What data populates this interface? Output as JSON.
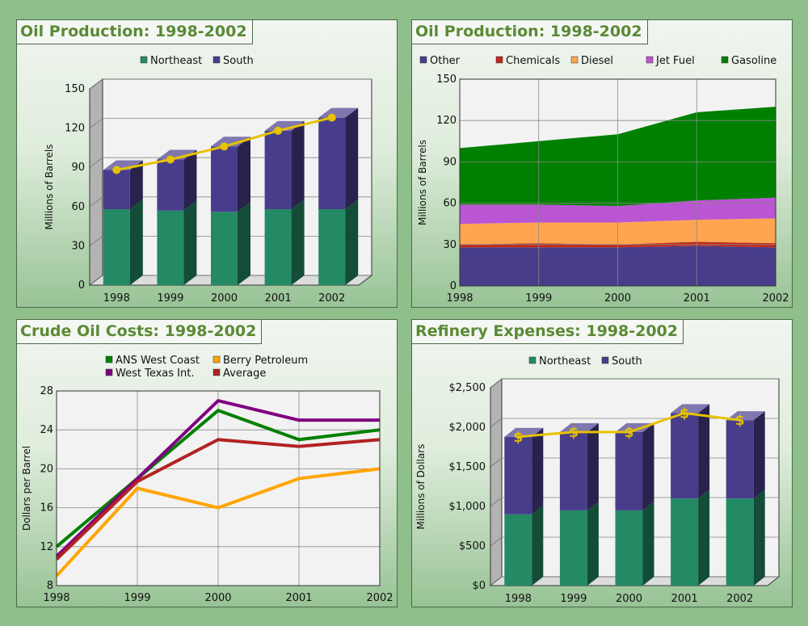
{
  "colors": {
    "northeast": "#238a64",
    "south": "#483d8b",
    "total_line": "#e6c200",
    "other": "#483d8b",
    "chemicals": "#c0281c",
    "diesel": "#ffa54f",
    "jet_fuel": "#ba55d3",
    "gasoline": "#008000",
    "ans": "#008000",
    "berry": "#ffa500",
    "wti": "#800080",
    "average": "#b22222"
  },
  "charts": [
    {
      "title": "Oil Production: 1998-2002",
      "chart_data": {
        "type": "bar",
        "stacked": true,
        "three_d": true,
        "categories": [
          "1998",
          "1999",
          "2000",
          "2001",
          "2002"
        ],
        "series": [
          {
            "name": "Northeast",
            "values": [
              58,
              57,
              56,
              58,
              58
            ]
          },
          {
            "name": "South",
            "values": [
              30,
              39,
              50,
              60,
              70
            ]
          }
        ],
        "line_overlay": {
          "values": [
            88,
            96,
            106,
            118,
            128
          ]
        },
        "ylabel": "Millions of Barrels",
        "ylim": [
          0,
          150
        ],
        "yticks": [
          "0",
          "30",
          "60",
          "90",
          "120",
          "150"
        ],
        "ytick_values": [
          0,
          30,
          60,
          90,
          120,
          150
        ],
        "legend": "top",
        "grid": true
      }
    },
    {
      "title": "Oil Production: 1998-2002",
      "chart_data": {
        "type": "area",
        "stacked": true,
        "x": [
          "1998",
          "1999",
          "2000",
          "2001",
          "2002"
        ],
        "series": [
          {
            "name": "Other",
            "values": [
              28,
              28,
              28,
              29,
              28
            ]
          },
          {
            "name": "Chemicals",
            "values": [
              2,
              3,
              2,
              3,
              3
            ]
          },
          {
            "name": "Diesel",
            "values": [
              15,
              15,
              16,
              16,
              18
            ]
          },
          {
            "name": "Jet Fuel",
            "values": [
              14,
              13,
              12,
              14,
              15
            ]
          },
          {
            "name": "Gasoline",
            "values": [
              41,
              46,
              52,
              64,
              66
            ]
          }
        ],
        "ylabel": "Millions of Barrels",
        "ylim": [
          0,
          150
        ],
        "yticks": [
          "0",
          "30",
          "60",
          "90",
          "120",
          "150"
        ],
        "ytick_values": [
          0,
          30,
          60,
          90,
          120,
          150
        ],
        "legend": "top",
        "grid": true
      }
    },
    {
      "title": "Crude Oil Costs: 1998-2002",
      "chart_data": {
        "type": "line",
        "x": [
          "1998",
          "1999",
          "2000",
          "2001",
          "2002"
        ],
        "series": [
          {
            "name": "ANS West Coast",
            "values": [
              12,
              19,
              26,
              23,
              24
            ]
          },
          {
            "name": "Berry Petroleum",
            "values": [
              9,
              18,
              16,
              19,
              20
            ]
          },
          {
            "name": "West Texas Int.",
            "values": [
              11,
              19,
              27,
              25,
              25
            ]
          },
          {
            "name": "Average",
            "values": [
              10.7,
              18.7,
              23,
              22.3,
              23
            ]
          }
        ],
        "ylabel": "Dollars per Barrel",
        "ylim": [
          8,
          28
        ],
        "yticks": [
          "8",
          "12",
          "16",
          "20",
          "24",
          "28"
        ],
        "ytick_values": [
          8,
          12,
          16,
          20,
          24,
          28
        ],
        "legend": "top",
        "grid": true
      }
    },
    {
      "title": "Refinery Expenses: 1998-2002",
      "chart_data": {
        "type": "bar",
        "stacked": true,
        "three_d": true,
        "categories": [
          "1998",
          "1999",
          "2000",
          "2001",
          "2002"
        ],
        "series": [
          {
            "name": "Northeast",
            "values": [
              900,
              950,
              950,
              1100,
              1100
            ]
          },
          {
            "name": "South",
            "values": [
              980,
              990,
              990,
              1080,
              990
            ]
          }
        ],
        "line_overlay": {
          "values": [
            1880,
            1940,
            1940,
            2180,
            2090
          ],
          "marker": "$"
        },
        "ylabel": "Millions of Dollars",
        "ylim": [
          0,
          2500
        ],
        "yticks": [
          "$0",
          "$500",
          "$1,000",
          "$1,500",
          "$2,000",
          "$2,500"
        ],
        "ytick_values": [
          0,
          500,
          1000,
          1500,
          2000,
          2500
        ],
        "legend": "top",
        "grid": true
      }
    }
  ]
}
